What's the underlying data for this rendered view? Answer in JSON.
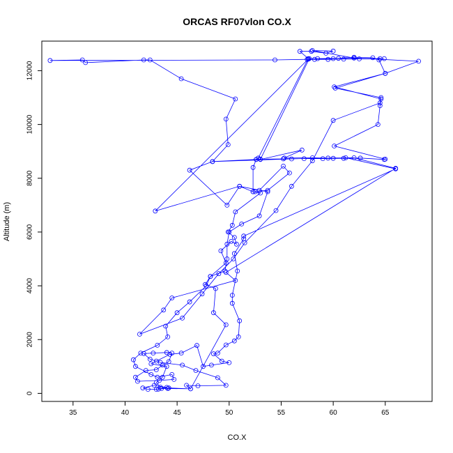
{
  "chart_data": {
    "type": "line",
    "title": "ORCAS RF07vlon CO.X",
    "xlabel": "CO.X",
    "ylabel": "Altitude (m)",
    "xlim": [
      32,
      69.5
    ],
    "ylim": [
      -300,
      13100
    ],
    "xticks": [
      35,
      40,
      45,
      50,
      55,
      60,
      65
    ],
    "yticks": [
      0,
      2000,
      4000,
      6000,
      8000,
      10000,
      12000
    ],
    "grid": false,
    "legend": "none",
    "series": [
      {
        "color": "#0000ff",
        "marker": "open-circle",
        "points": [
          [
            43.0,
            150
          ],
          [
            43.5,
            180
          ],
          [
            44.0,
            220
          ],
          [
            42.8,
            300
          ],
          [
            41.7,
            200
          ],
          [
            42.2,
            150
          ],
          [
            43.2,
            160
          ],
          [
            44.2,
            200
          ],
          [
            46.3,
            170
          ],
          [
            45.9,
            300
          ],
          [
            47.0,
            280
          ],
          [
            49.7,
            300
          ],
          [
            48.9,
            580
          ],
          [
            46.8,
            850
          ],
          [
            45.5,
            1050
          ],
          [
            43.4,
            1150
          ],
          [
            42.4,
            1270
          ],
          [
            41.8,
            1480
          ],
          [
            42.7,
            1500
          ],
          [
            44.0,
            1520
          ],
          [
            44.5,
            1500
          ],
          [
            44.2,
            1180
          ],
          [
            43.6,
            1050
          ],
          [
            43.0,
            880
          ],
          [
            42.0,
            850
          ],
          [
            41.0,
            600
          ],
          [
            41.2,
            450
          ],
          [
            43.3,
            480
          ],
          [
            44.7,
            520
          ],
          [
            44.5,
            700
          ],
          [
            43.1,
            600
          ],
          [
            42.5,
            700
          ],
          [
            41.0,
            1000
          ],
          [
            40.8,
            1250
          ],
          [
            41.5,
            1500
          ],
          [
            43.1,
            1790
          ],
          [
            44.1,
            2100
          ],
          [
            43.9,
            2500
          ],
          [
            45.0,
            3000
          ],
          [
            46.2,
            3400
          ],
          [
            47.8,
            4000
          ],
          [
            48.2,
            4350
          ],
          [
            49.7,
            4850
          ],
          [
            49.2,
            5300
          ],
          [
            50.2,
            5650
          ],
          [
            50.7,
            5550
          ],
          [
            50.5,
            5800
          ],
          [
            49.9,
            6000
          ],
          [
            50.3,
            6250
          ],
          [
            50.6,
            6750
          ],
          [
            53.0,
            7450
          ],
          [
            52.3,
            7500
          ],
          [
            52.3,
            8400
          ],
          [
            52.6,
            8700
          ],
          [
            53.0,
            8710
          ],
          [
            55.2,
            8720
          ],
          [
            57.2,
            8730
          ],
          [
            59.0,
            8730
          ],
          [
            61.0,
            8740
          ],
          [
            62.6,
            8750
          ],
          [
            64.9,
            8700
          ],
          [
            65.0,
            8710
          ],
          [
            60.1,
            9200
          ],
          [
            64.3,
            10000
          ],
          [
            64.5,
            10700
          ],
          [
            64.6,
            10950
          ],
          [
            60.1,
            11400
          ],
          [
            65.0,
            11900
          ],
          [
            64.4,
            12400
          ],
          [
            63.8,
            12480
          ],
          [
            62.0,
            12500
          ],
          [
            60.0,
            12450
          ],
          [
            58.2,
            12420
          ],
          [
            57.7,
            12450
          ],
          [
            53.0,
            8700
          ],
          [
            57.0,
            9050
          ],
          [
            55.3,
            8750
          ],
          [
            58.0,
            8760
          ],
          [
            60.0,
            8740
          ],
          [
            61.2,
            8760
          ],
          [
            66.0,
            8350
          ],
          [
            51.4,
            5850
          ],
          [
            51.4,
            5750
          ],
          [
            50.5,
            5200
          ],
          [
            50.8,
            4550
          ],
          [
            50.3,
            3650
          ],
          [
            50.3,
            3350
          ],
          [
            51.0,
            2700
          ],
          [
            50.9,
            2100
          ],
          [
            50.5,
            1950
          ],
          [
            49.7,
            1800
          ],
          [
            48.9,
            1500
          ],
          [
            48.5,
            1470
          ],
          [
            49.3,
            1200
          ],
          [
            50.0,
            1140
          ],
          [
            48.3,
            1050
          ],
          [
            47.5,
            1000
          ],
          [
            46.9,
            1780
          ],
          [
            45.4,
            1500
          ],
          [
            44.3,
            1450
          ],
          [
            43.0,
            1200
          ],
          [
            42.5,
            1100
          ],
          [
            44.0,
            1000
          ],
          [
            43.6,
            600
          ],
          [
            43.0,
            400
          ],
          [
            43.4,
            230
          ],
          [
            44.1,
            180
          ],
          [
            46.3,
            170
          ],
          [
            49.7,
            2550
          ],
          [
            48.5,
            3000
          ],
          [
            48.7,
            3900
          ],
          [
            47.7,
            4050
          ],
          [
            48.2,
            4350
          ],
          [
            49.6,
            4550
          ],
          [
            49.8,
            5000
          ],
          [
            49.8,
            5550
          ],
          [
            50.0,
            6000
          ],
          [
            51.2,
            6300
          ],
          [
            52.9,
            6600
          ],
          [
            53.7,
            7500
          ],
          [
            51.0,
            7700
          ],
          [
            49.8,
            7000
          ],
          [
            46.2,
            8300
          ],
          [
            48.4,
            8620
          ],
          [
            56.0,
            8720
          ],
          [
            59.5,
            8750
          ],
          [
            62.0,
            8760
          ],
          [
            66.0,
            8370
          ],
          [
            49.7,
            4500
          ],
          [
            50.6,
            4200
          ],
          [
            44.5,
            3550
          ],
          [
            43.7,
            3100
          ],
          [
            41.4,
            2200
          ],
          [
            45.5,
            2800
          ],
          [
            47.4,
            3700
          ],
          [
            49.0,
            4450
          ],
          [
            50.4,
            5000
          ],
          [
            51.5,
            5600
          ],
          [
            54.5,
            6800
          ],
          [
            56.0,
            7700
          ],
          [
            58.0,
            8650
          ],
          [
            60.0,
            10150
          ],
          [
            64.5,
            10800
          ],
          [
            64.6,
            11000
          ],
          [
            60.2,
            11350
          ],
          [
            65.0,
            11900
          ],
          [
            68.2,
            12350
          ],
          [
            62.0,
            12470
          ],
          [
            58.0,
            12750
          ],
          [
            60.0,
            12730
          ],
          [
            59.3,
            12650
          ],
          [
            57.9,
            12720
          ],
          [
            56.8,
            12720
          ],
          [
            57.6,
            12450
          ],
          [
            52.8,
            8750
          ],
          [
            52.6,
            8700
          ],
          [
            48.4,
            8620
          ],
          [
            49.9,
            9250
          ],
          [
            49.7,
            10200
          ],
          [
            50.6,
            10950
          ],
          [
            45.4,
            11700
          ],
          [
            42.4,
            12400
          ],
          [
            41.8,
            12400
          ],
          [
            36.2,
            12300
          ],
          [
            35.9,
            12400
          ],
          [
            32.8,
            12380
          ],
          [
            54.4,
            12400
          ],
          [
            57.5,
            12420
          ],
          [
            59.5,
            12420
          ],
          [
            61.0,
            12430
          ],
          [
            62.5,
            12440
          ],
          [
            64.5,
            12450
          ],
          [
            64.9,
            12450
          ],
          [
            60.5,
            12460
          ],
          [
            58.5,
            12450
          ],
          [
            57.6,
            12430
          ],
          [
            42.9,
            6780
          ],
          [
            51.0,
            7700
          ],
          [
            52.3,
            7500
          ],
          [
            52.5,
            7500
          ],
          [
            53.7,
            7550
          ],
          [
            55.8,
            8200
          ],
          [
            55.2,
            8450
          ],
          [
            52.9,
            7550
          ]
        ]
      }
    ]
  }
}
